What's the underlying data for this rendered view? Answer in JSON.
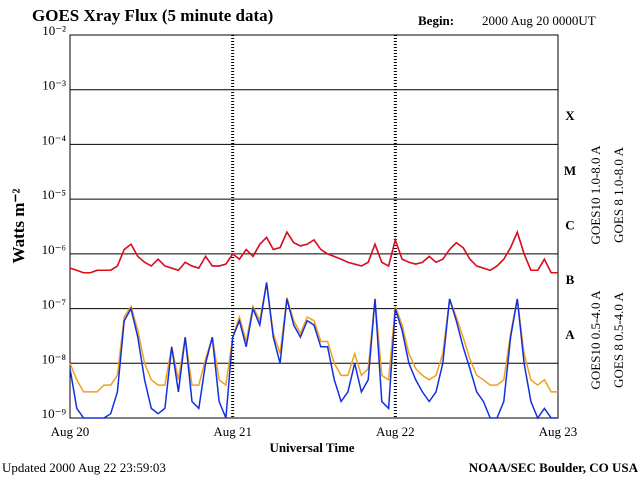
{
  "chart_data": {
    "type": "line",
    "title": "GOES Xray Flux (5 minute data)",
    "begin_label": "Begin:",
    "begin": "2000 Aug 20 0000UT",
    "ylabel": "Watts m⁻²",
    "xlabel": "Universal Time",
    "updated": "Updated 2000 Aug 22 23:59:03",
    "credit": "NOAA/SEC Boulder, CO USA",
    "yscale": "log",
    "grid": true,
    "ylim": [
      1e-09,
      0.01
    ],
    "yticks": [
      {
        "value": 1e-09,
        "label": "10⁻⁹"
      },
      {
        "value": 1e-08,
        "label": "10⁻⁸"
      },
      {
        "value": 1e-07,
        "label": "10⁻⁷"
      },
      {
        "value": 1e-06,
        "label": "10⁻⁶"
      },
      {
        "value": 1e-05,
        "label": "10⁻⁵"
      },
      {
        "value": 0.0001,
        "label": "10⁻⁴"
      },
      {
        "value": 0.001,
        "label": "10⁻³"
      },
      {
        "value": 0.01,
        "label": "10⁻²"
      }
    ],
    "xlim": [
      0,
      72
    ],
    "xticks": [
      {
        "value": 0,
        "label": "Aug 20"
      },
      {
        "value": 24,
        "label": "Aug 21"
      },
      {
        "value": 48,
        "label": "Aug 22"
      },
      {
        "value": 72,
        "label": "Aug 23"
      }
    ],
    "flare_classes": [
      {
        "label": "A",
        "value": 1e-08
      },
      {
        "label": "B",
        "value": 1e-07
      },
      {
        "label": "C",
        "value": 1e-06
      },
      {
        "label": "M",
        "value": 1e-05
      },
      {
        "label": "X",
        "value": 0.0001
      }
    ],
    "x": [
      0,
      1,
      2,
      3,
      4,
      5,
      6,
      7,
      8,
      9,
      10,
      11,
      12,
      13,
      14,
      15,
      16,
      17,
      18,
      19,
      20,
      21,
      22,
      23,
      24,
      25,
      26,
      27,
      28,
      29,
      30,
      31,
      32,
      33,
      34,
      35,
      36,
      37,
      38,
      39,
      40,
      41,
      42,
      43,
      44,
      45,
      46,
      47,
      48,
      49,
      50,
      51,
      52,
      53,
      54,
      55,
      56,
      57,
      58,
      59,
      60,
      61,
      62,
      63,
      64,
      65,
      66,
      67,
      68,
      69,
      70,
      71,
      72
    ],
    "series": [
      {
        "name": "GOES10 1.0-8.0 A",
        "color": "#8a2be2",
        "values": [
          5.5e-07,
          5e-07,
          4.5e-07,
          4.5e-07,
          5e-07,
          5e-07,
          5e-07,
          6e-07,
          1.2e-06,
          1.5e-06,
          9e-07,
          7e-07,
          6e-07,
          8e-07,
          6e-07,
          5.5e-07,
          5e-07,
          7e-07,
          6e-07,
          5.5e-07,
          9e-07,
          6e-07,
          6e-07,
          6.5e-07,
          1e-06,
          8e-07,
          1.2e-06,
          9e-07,
          1.5e-06,
          2e-06,
          1.2e-06,
          1.3e-06,
          2.5e-06,
          1.6e-06,
          1.4e-06,
          1.5e-06,
          1.8e-06,
          1.2e-06,
          1e-06,
          9e-07,
          8e-07,
          7e-07,
          6.5e-07,
          6e-07,
          7e-07,
          1.5e-06,
          7e-07,
          6e-07,
          1.8e-06,
          8e-07,
          7e-07,
          6.5e-07,
          7e-07,
          9e-07,
          7e-07,
          8e-07,
          1.2e-06,
          1.6e-06,
          1.3e-06,
          8e-07,
          6e-07,
          5.5e-07,
          5e-07,
          6e-07,
          8e-07,
          1.3e-06,
          2.5e-06,
          1e-06,
          5e-07,
          5e-07,
          8e-07,
          4.5e-07,
          4.5e-07
        ]
      },
      {
        "name": "GOES 8 1.0-8.0 A",
        "color": "#e01010",
        "values": [
          5.5e-07,
          5e-07,
          4.5e-07,
          4.5e-07,
          5e-07,
          5e-07,
          5e-07,
          6e-07,
          1.2e-06,
          1.5e-06,
          9e-07,
          7e-07,
          6e-07,
          8e-07,
          6e-07,
          5.5e-07,
          5e-07,
          7e-07,
          6e-07,
          5.5e-07,
          9e-07,
          6e-07,
          6e-07,
          6.5e-07,
          1e-06,
          8e-07,
          1.2e-06,
          9e-07,
          1.5e-06,
          2e-06,
          1.2e-06,
          1.3e-06,
          2.5e-06,
          1.6e-06,
          1.4e-06,
          1.5e-06,
          1.8e-06,
          1.2e-06,
          1e-06,
          9e-07,
          8e-07,
          7e-07,
          6.5e-07,
          6e-07,
          7e-07,
          1.5e-06,
          7e-07,
          6e-07,
          1.8e-06,
          8e-07,
          7e-07,
          6.5e-07,
          7e-07,
          9e-07,
          7e-07,
          8e-07,
          1.2e-06,
          1.6e-06,
          1.3e-06,
          8e-07,
          6e-07,
          5.5e-07,
          5e-07,
          6e-07,
          8e-07,
          1.3e-06,
          2.5e-06,
          1e-06,
          5e-07,
          5e-07,
          8e-07,
          4.5e-07,
          4.5e-07
        ]
      },
      {
        "name": "GOES10 0.5-4.0 A",
        "color": "#f0a020",
        "values": [
          1e-08,
          5e-09,
          3e-09,
          3e-09,
          3e-09,
          4e-09,
          4e-09,
          6e-09,
          7e-08,
          1.1e-07,
          4e-08,
          1e-08,
          5e-09,
          4e-09,
          4e-09,
          2e-08,
          5e-09,
          3e-08,
          4e-09,
          4e-09,
          1.2e-08,
          3e-08,
          5e-09,
          4e-09,
          3e-08,
          7e-08,
          2.5e-08,
          1.1e-07,
          6e-08,
          3e-07,
          3.5e-08,
          1.5e-08,
          1.6e-07,
          6e-08,
          3.5e-08,
          7e-08,
          6e-08,
          2.5e-08,
          2.5e-08,
          1e-08,
          6e-09,
          6e-09,
          1.5e-08,
          6e-09,
          8e-09,
          1.5e-07,
          6e-09,
          5e-09,
          1.1e-07,
          5e-08,
          1.5e-08,
          8e-09,
          6e-09,
          5e-09,
          6e-09,
          1.5e-08,
          1.5e-07,
          7e-08,
          3e-08,
          1.2e-08,
          6e-09,
          5e-09,
          4e-09,
          4e-09,
          5e-09,
          3.5e-08,
          1.5e-07,
          1.5e-08,
          5e-09,
          4e-09,
          5e-09,
          3e-09,
          3e-09
        ]
      },
      {
        "name": "GOES 8 0.5-4.0 A",
        "color": "#1030e0",
        "values": [
          8e-09,
          1.5e-09,
          1e-09,
          1e-09,
          1e-09,
          1e-09,
          1.2e-09,
          3e-09,
          6e-08,
          1e-07,
          3e-08,
          5e-09,
          1.5e-09,
          1.2e-09,
          1.5e-09,
          2e-08,
          3e-09,
          3e-08,
          2e-09,
          1.5e-09,
          1e-08,
          3e-08,
          2e-09,
          1e-09,
          3e-08,
          6e-08,
          2e-08,
          1e-07,
          5e-08,
          3e-07,
          3e-08,
          1e-08,
          1.5e-07,
          5e-08,
          3e-08,
          6e-08,
          5e-08,
          2e-08,
          2e-08,
          5e-09,
          2e-09,
          3e-09,
          1e-08,
          3e-09,
          5e-09,
          1.5e-07,
          2e-09,
          1.5e-09,
          1e-07,
          4e-08,
          1e-08,
          5e-09,
          3e-09,
          2e-09,
          3e-09,
          1e-08,
          1.5e-07,
          6e-08,
          2e-08,
          8e-09,
          3e-09,
          2e-09,
          1e-09,
          1e-09,
          2e-09,
          3e-08,
          1.5e-07,
          1e-08,
          2e-09,
          1e-09,
          1.5e-09,
          1e-09,
          1e-09
        ]
      }
    ]
  }
}
